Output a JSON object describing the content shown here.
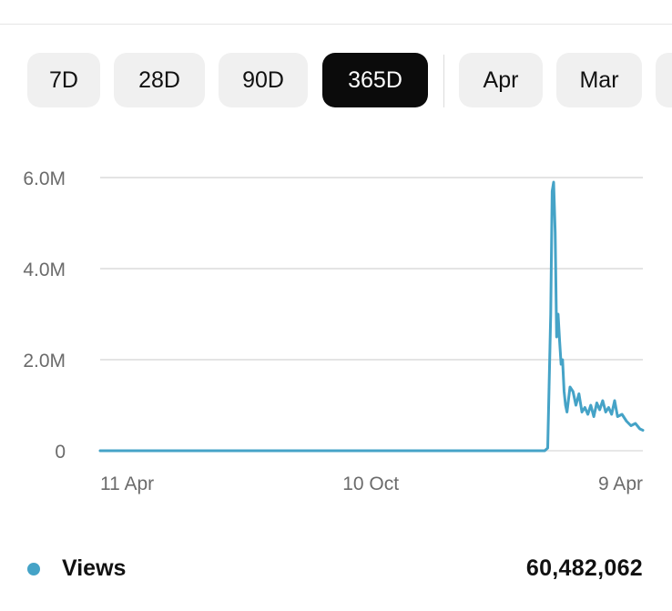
{
  "range_tabs": [
    {
      "label": "7D",
      "active": false
    },
    {
      "label": "28D",
      "active": false
    },
    {
      "label": "90D",
      "active": false
    },
    {
      "label": "365D",
      "active": true
    },
    {
      "label": "Apr",
      "active": false
    },
    {
      "label": "Mar",
      "active": false
    },
    {
      "label": "",
      "active": false
    }
  ],
  "colors": {
    "series": "#45a3c7",
    "grid": "#e4e4e4",
    "axis_text": "#6b6b6b",
    "active_tab_bg": "#0b0b0b"
  },
  "legend": {
    "label": "Views",
    "total": "60,482,062"
  },
  "chart_data": {
    "type": "line",
    "title": "",
    "xlabel": "",
    "ylabel": "",
    "ylim": [
      0,
      6000000
    ],
    "y_ticks": [
      {
        "value": 0,
        "label": "0"
      },
      {
        "value": 2000000,
        "label": "2.0M"
      },
      {
        "value": 4000000,
        "label": "4.0M"
      },
      {
        "value": 6000000,
        "label": "6.0M"
      }
    ],
    "x_range": [
      "2023-04-11",
      "2024-04-10"
    ],
    "x_ticks": [
      {
        "date": "2023-04-11",
        "label": "11 Apr"
      },
      {
        "date": "2023-10-10",
        "label": "10 Oct"
      },
      {
        "date": "2024-04-09",
        "label": "9 Apr"
      }
    ],
    "grid": true,
    "legend_position": "bottom",
    "series": [
      {
        "name": "Views",
        "points": [
          {
            "x": "2023-04-11",
            "y": 0
          },
          {
            "x": "2024-02-04",
            "y": 0
          },
          {
            "x": "2024-02-06",
            "y": 60000
          },
          {
            "x": "2024-02-08",
            "y": 3000000
          },
          {
            "x": "2024-02-09",
            "y": 5700000
          },
          {
            "x": "2024-02-10",
            "y": 5900000
          },
          {
            "x": "2024-02-11",
            "y": 4800000
          },
          {
            "x": "2024-02-12",
            "y": 2500000
          },
          {
            "x": "2024-02-13",
            "y": 3000000
          },
          {
            "x": "2024-02-14",
            "y": 2400000
          },
          {
            "x": "2024-02-15",
            "y": 1900000
          },
          {
            "x": "2024-02-16",
            "y": 2000000
          },
          {
            "x": "2024-02-17",
            "y": 1300000
          },
          {
            "x": "2024-02-18",
            "y": 1000000
          },
          {
            "x": "2024-02-19",
            "y": 850000
          },
          {
            "x": "2024-02-21",
            "y": 1400000
          },
          {
            "x": "2024-02-23",
            "y": 1300000
          },
          {
            "x": "2024-02-25",
            "y": 1000000
          },
          {
            "x": "2024-02-27",
            "y": 1250000
          },
          {
            "x": "2024-02-29",
            "y": 850000
          },
          {
            "x": "2024-03-02",
            "y": 950000
          },
          {
            "x": "2024-03-04",
            "y": 800000
          },
          {
            "x": "2024-03-06",
            "y": 1000000
          },
          {
            "x": "2024-03-08",
            "y": 750000
          },
          {
            "x": "2024-03-10",
            "y": 1050000
          },
          {
            "x": "2024-03-12",
            "y": 900000
          },
          {
            "x": "2024-03-14",
            "y": 1100000
          },
          {
            "x": "2024-03-16",
            "y": 850000
          },
          {
            "x": "2024-03-18",
            "y": 950000
          },
          {
            "x": "2024-03-20",
            "y": 800000
          },
          {
            "x": "2024-03-22",
            "y": 1100000
          },
          {
            "x": "2024-03-24",
            "y": 750000
          },
          {
            "x": "2024-03-27",
            "y": 800000
          },
          {
            "x": "2024-03-30",
            "y": 650000
          },
          {
            "x": "2024-04-02",
            "y": 550000
          },
          {
            "x": "2024-04-05",
            "y": 600000
          },
          {
            "x": "2024-04-08",
            "y": 480000
          },
          {
            "x": "2024-04-10",
            "y": 450000
          }
        ]
      }
    ]
  }
}
